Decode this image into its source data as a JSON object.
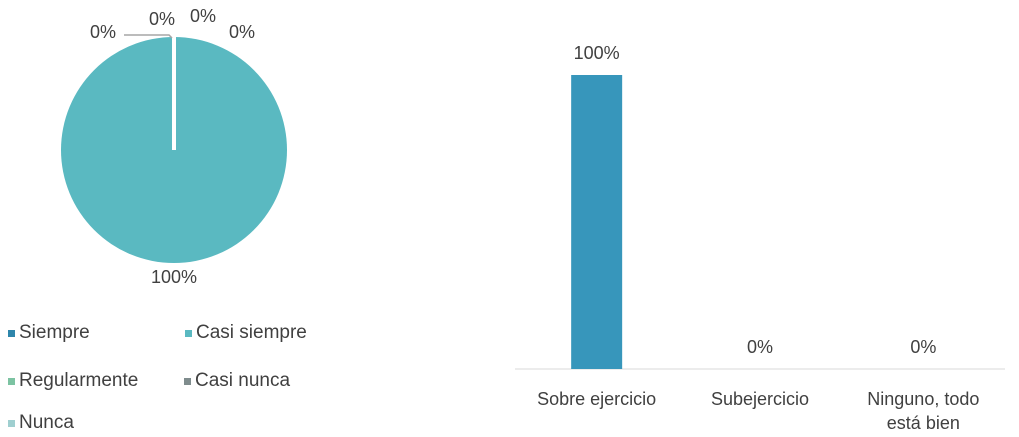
{
  "chart_data": [
    {
      "type": "pie",
      "slices": [
        {
          "name": "Siempre",
          "value": 0,
          "label": "0%",
          "color": "#2e86ab"
        },
        {
          "name": "Casi siempre",
          "value": 100,
          "label": "100%",
          "color": "#5ab9c1"
        },
        {
          "name": "Regularmente",
          "value": 0,
          "label": "0%",
          "color": "#7cc3a2"
        },
        {
          "name": "Casi nunca",
          "value": 0,
          "label": "0%",
          "color": "#7f8c8d"
        },
        {
          "name": "Nunca",
          "value": 0,
          "label": "0%",
          "color": "#9fcfd0"
        }
      ],
      "legend_position": "bottom"
    },
    {
      "type": "bar",
      "categories": [
        "Sobre ejercicio",
        "Subejercicio",
        "Ninguno, todo está bien"
      ],
      "values": [
        100,
        0,
        0
      ],
      "value_labels": [
        "100%",
        "0%",
        "0%"
      ],
      "ylim": [
        0,
        100
      ],
      "color": "#3796bb",
      "grid": false
    }
  ]
}
